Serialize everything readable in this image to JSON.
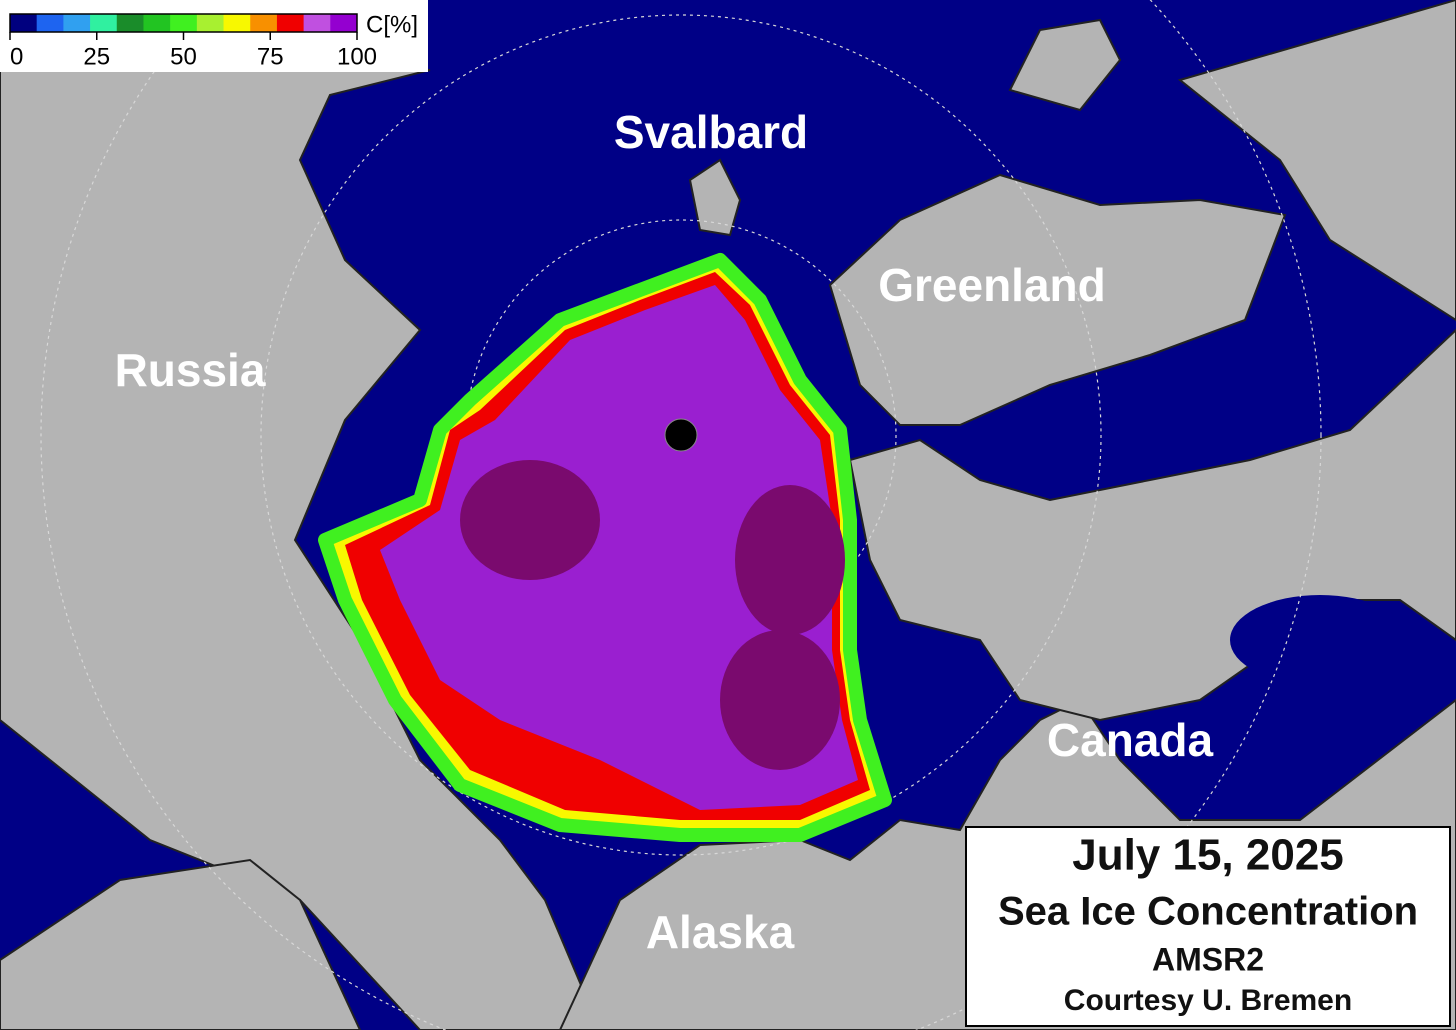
{
  "colorbar": {
    "label": "C[%]",
    "range": [
      0,
      100
    ],
    "ticks": [
      0,
      25,
      50,
      75,
      100
    ],
    "colors": [
      "#00007f",
      "#1e64f0",
      "#30a0f0",
      "#30f0a0",
      "#1a8c2a",
      "#22c422",
      "#40f020",
      "#a8f030",
      "#f8f800",
      "#f89000",
      "#f00000",
      "#c050e0",
      "#9400d0"
    ]
  },
  "labels": {
    "svalbard": "Svalbard",
    "greenland": "Greenland",
    "russia": "Russia",
    "canada": "Canada",
    "alaska": "Alaska"
  },
  "info": {
    "date": "July 15, 2025",
    "title": "Sea Ice Concentration",
    "sensor": "AMSR2",
    "credit": "Courtesy U. Bremen"
  }
}
